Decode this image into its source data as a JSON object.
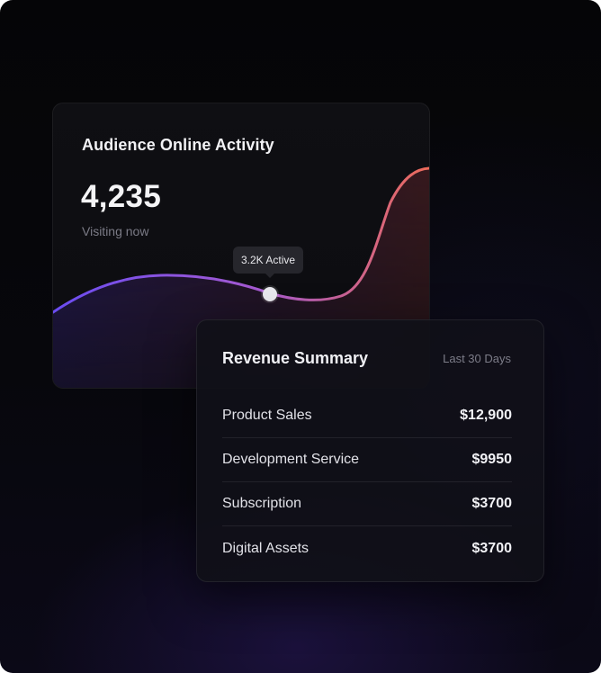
{
  "audience": {
    "title": "Audience Online Activity",
    "count": "4,235",
    "subtitle": "Visiting now",
    "tooltip": "3.2K Active"
  },
  "revenue": {
    "title": "Revenue Summary",
    "period": "Last 30 Days",
    "rows": [
      {
        "label": "Product Sales",
        "value": "$12,900"
      },
      {
        "label": "Development Service",
        "value": "$9950"
      },
      {
        "label": "Subscription",
        "value": "$3700"
      },
      {
        "label": "Digital Assets",
        "value": "$3700"
      }
    ]
  },
  "colors": {
    "wave_start": "#6b4cf0",
    "wave_mid": "#b24fc8",
    "wave_end": "#e86a5a",
    "background": "#060608"
  }
}
